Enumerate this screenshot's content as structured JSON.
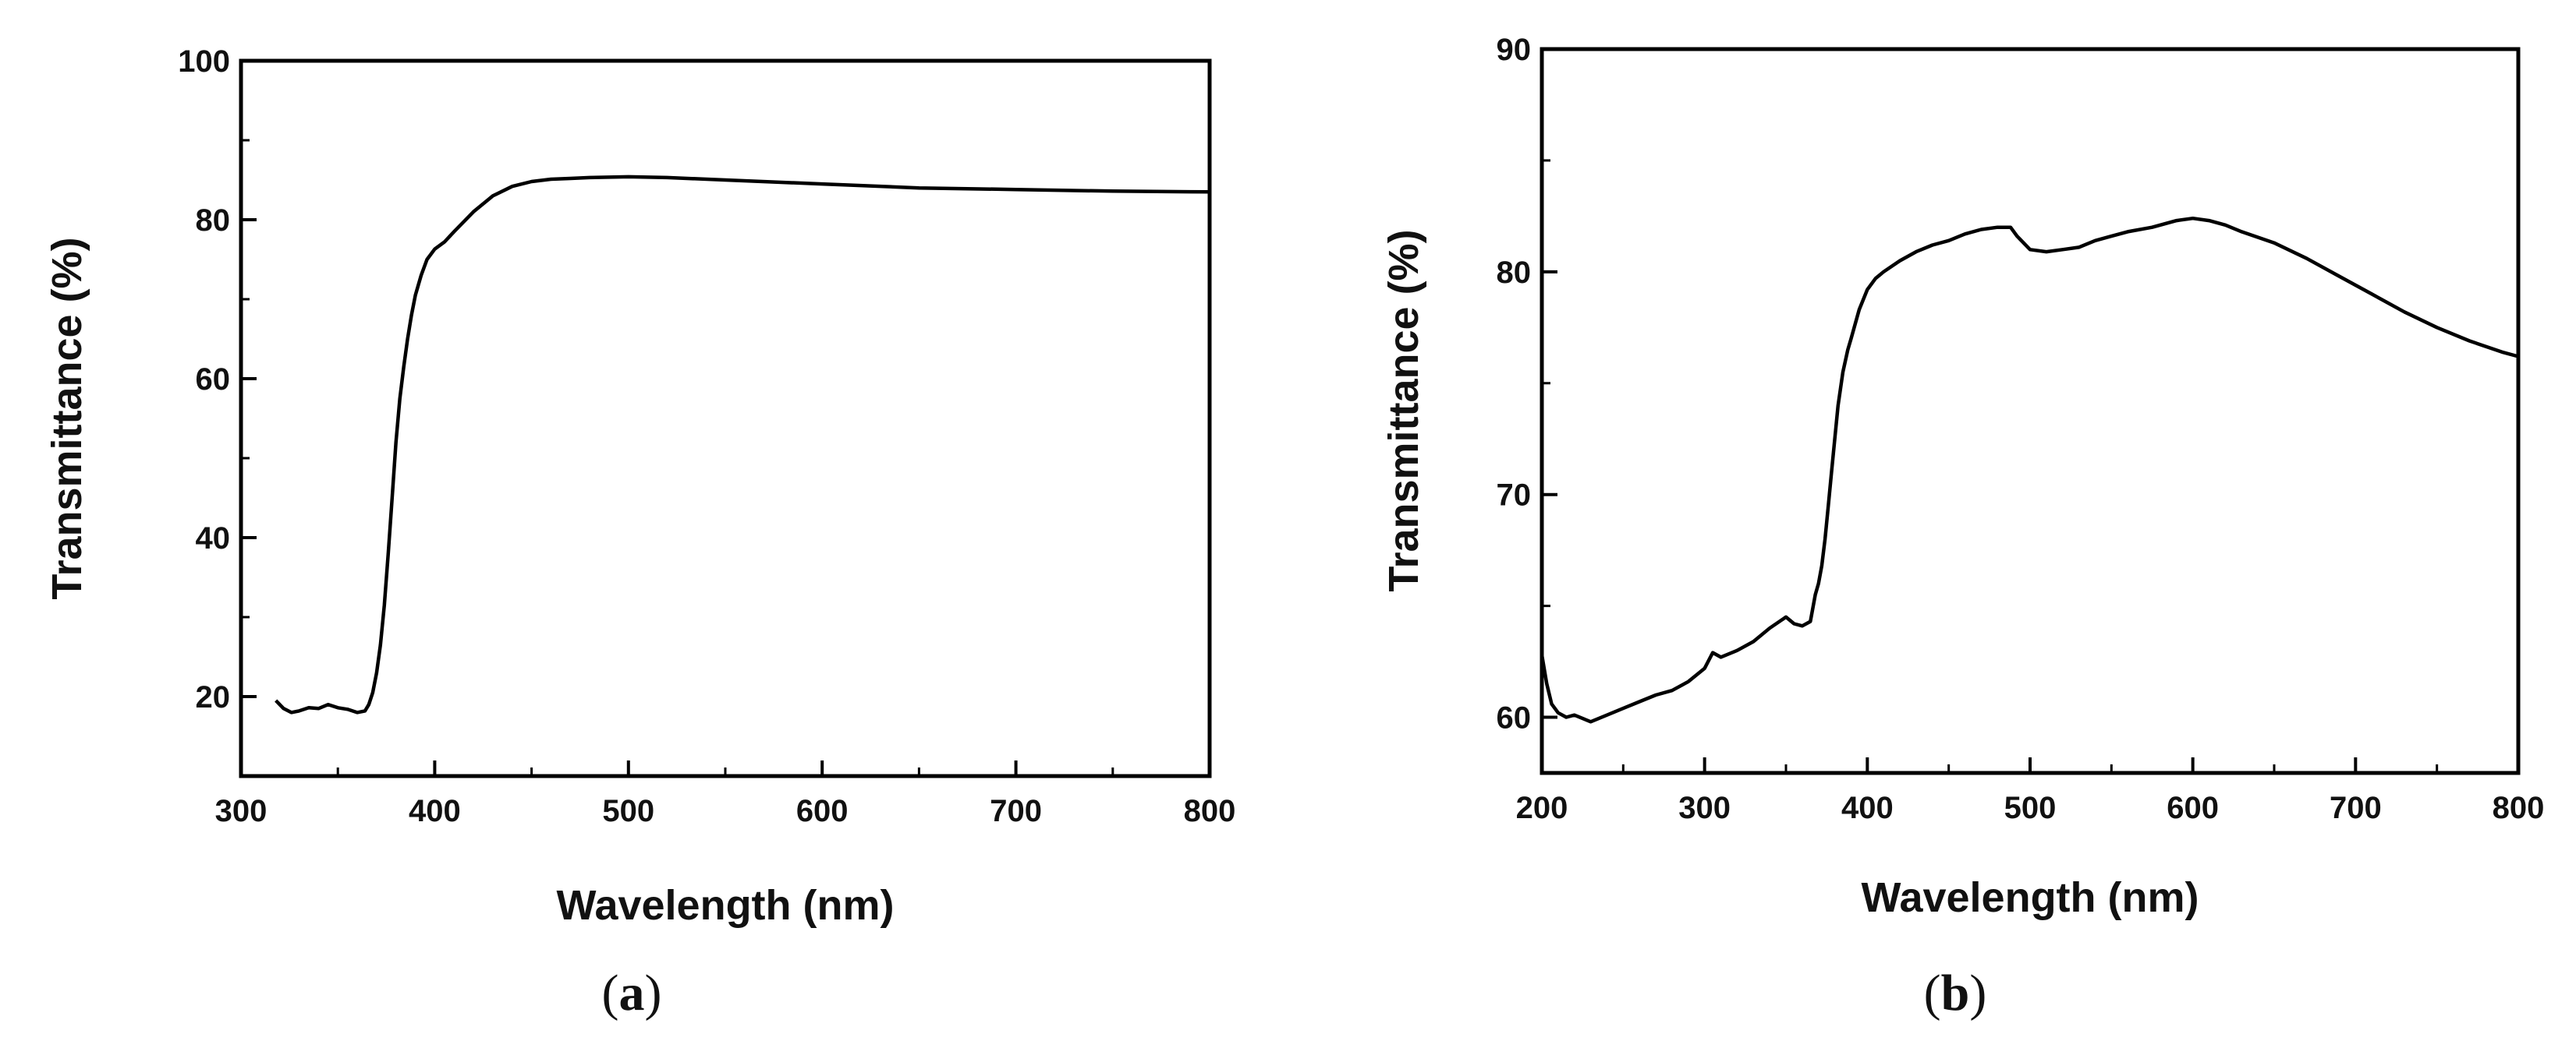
{
  "chart_data": [
    {
      "type": "line",
      "panel_label": {
        "open": "(",
        "letter": "a",
        "close": ")"
      },
      "title": "",
      "xlabel": "Wavelength (nm)",
      "ylabel": "Transmittance (%)",
      "xlim": [
        300,
        800
      ],
      "ylim": [
        10,
        100
      ],
      "xticks": [
        300,
        400,
        500,
        600,
        700,
        800
      ],
      "yticks": [
        20,
        40,
        60,
        80,
        100
      ],
      "x_minor_step": 50,
      "y_minor_step": 10,
      "grid": false,
      "series": [
        {
          "name": "Transmittance",
          "x": [
            318,
            322,
            326,
            330,
            335,
            340,
            345,
            350,
            355,
            360,
            364,
            366,
            368,
            370,
            372,
            374,
            376,
            378,
            380,
            382,
            384,
            386,
            388,
            390,
            393,
            396,
            400,
            405,
            410,
            420,
            430,
            440,
            450,
            460,
            470,
            480,
            500,
            520,
            550,
            600,
            650,
            700,
            750,
            800
          ],
          "y": [
            19.5,
            18.5,
            18.0,
            18.2,
            18.6,
            18.5,
            19.0,
            18.6,
            18.4,
            18.0,
            18.2,
            19.0,
            20.5,
            23.0,
            26.5,
            31.5,
            38.0,
            45.0,
            52.0,
            57.5,
            61.5,
            65.0,
            68.0,
            70.5,
            73.0,
            75.0,
            76.3,
            77.2,
            78.5,
            81.0,
            83.0,
            84.2,
            84.8,
            85.1,
            85.2,
            85.3,
            85.4,
            85.3,
            85.0,
            84.5,
            84.0,
            83.8,
            83.6,
            83.5
          ]
        }
      ]
    },
    {
      "type": "line",
      "panel_label": {
        "open": "(",
        "letter": "b",
        "close": ")"
      },
      "title": "",
      "xlabel": "Wavelength (nm)",
      "ylabel": "Transmittance (%)",
      "xlim": [
        200,
        800
      ],
      "ylim": [
        57.5,
        90
      ],
      "xticks": [
        200,
        300,
        400,
        500,
        600,
        700,
        800
      ],
      "yticks": [
        60,
        70,
        80,
        90
      ],
      "x_minor_step": 50,
      "y_minor_step": 5,
      "grid": false,
      "series": [
        {
          "name": "Transmittance",
          "x": [
            200,
            203,
            206,
            210,
            215,
            220,
            230,
            240,
            250,
            260,
            270,
            280,
            290,
            300,
            305,
            310,
            320,
            330,
            340,
            350,
            355,
            360,
            365,
            368,
            370,
            372,
            374,
            376,
            378,
            380,
            382,
            385,
            388,
            390,
            395,
            400,
            405,
            410,
            420,
            430,
            440,
            450,
            460,
            470,
            480,
            488,
            492,
            500,
            510,
            520,
            530,
            540,
            550,
            560,
            575,
            590,
            600,
            610,
            620,
            630,
            650,
            670,
            690,
            710,
            730,
            750,
            770,
            790,
            800
          ],
          "y": [
            62.8,
            61.5,
            60.6,
            60.2,
            60.0,
            60.1,
            59.8,
            60.1,
            60.4,
            60.7,
            61.0,
            61.2,
            61.6,
            62.2,
            62.9,
            62.7,
            63.0,
            63.4,
            64.0,
            64.5,
            64.2,
            64.1,
            64.3,
            65.5,
            66.0,
            66.8,
            68.0,
            69.5,
            71.0,
            72.5,
            74.0,
            75.5,
            76.5,
            77.0,
            78.3,
            79.2,
            79.7,
            80.0,
            80.5,
            80.9,
            81.2,
            81.4,
            81.7,
            81.9,
            82.0,
            82.0,
            81.6,
            81.0,
            80.9,
            81.0,
            81.1,
            81.4,
            81.6,
            81.8,
            82.0,
            82.3,
            82.4,
            82.3,
            82.1,
            81.8,
            81.3,
            80.6,
            79.8,
            79.0,
            78.2,
            77.5,
            76.9,
            76.4,
            76.2
          ]
        }
      ]
    }
  ]
}
